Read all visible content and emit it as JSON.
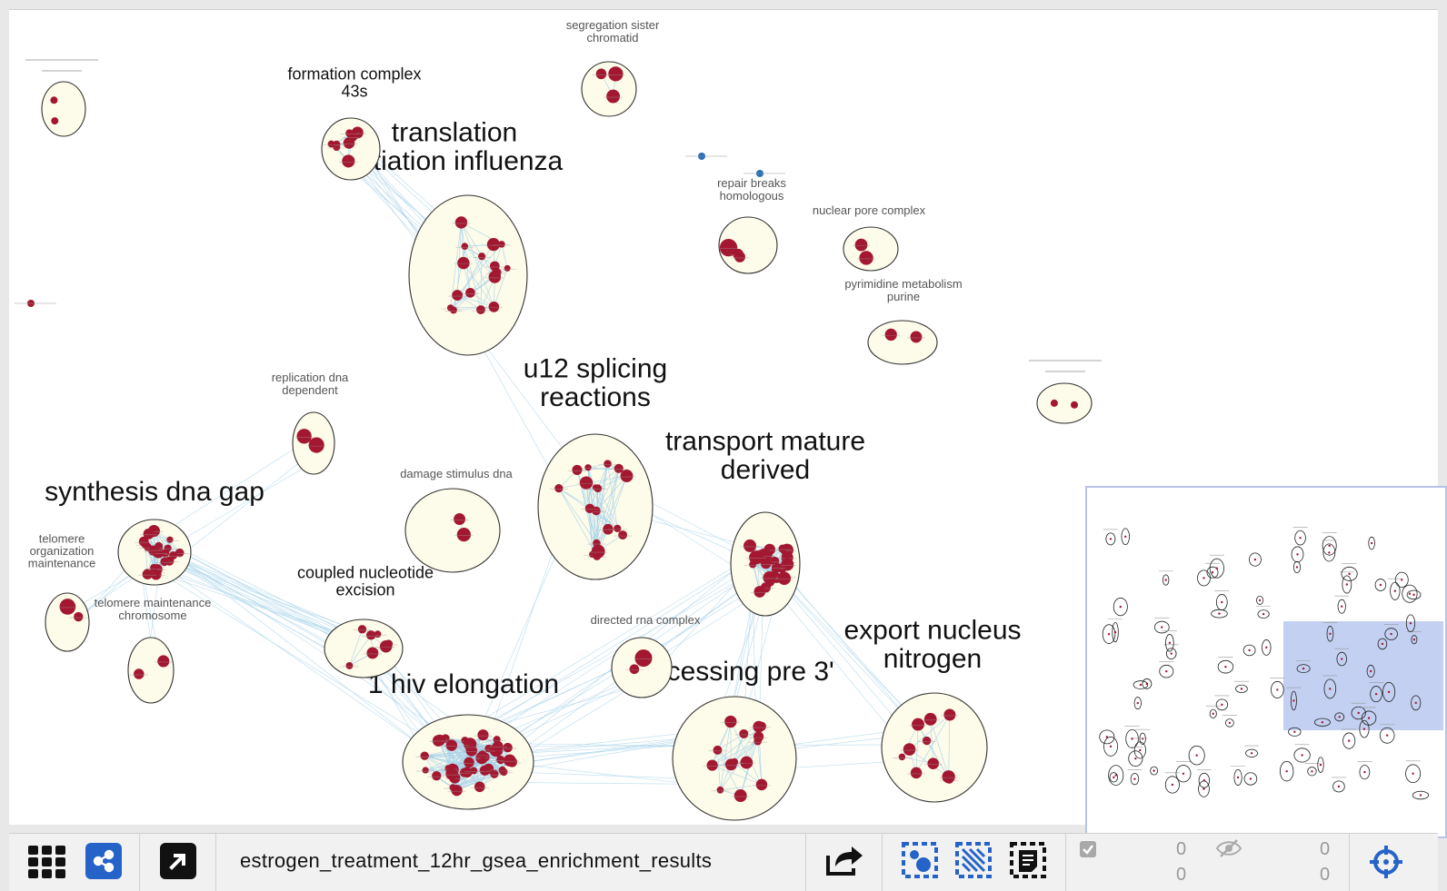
{
  "network": {
    "title": "estrogen_treatment_12hr_gsea_enrichment_results",
    "clusters": [
      {
        "label": "synthesis dna gap",
        "size": "big"
      },
      {
        "label": "translation initiation influenza",
        "size": "big"
      },
      {
        "label": "u12 splicing reactions",
        "size": "big"
      },
      {
        "label": "transport mature derived",
        "size": "big"
      },
      {
        "label": "1 hiv elongation",
        "size": "big"
      },
      {
        "label": "processing pre 3'",
        "size": "big"
      },
      {
        "label": "export nucleus nitrogen",
        "size": "big"
      },
      {
        "label": "coupled nucleotide excision",
        "size": "medium"
      },
      {
        "label": "formation complex 43s",
        "size": "medium"
      },
      {
        "label": "segregation sister chromatid",
        "size": "small"
      },
      {
        "label": "repair breaks homologous",
        "size": "small"
      },
      {
        "label": "nuclear pore complex",
        "size": "small"
      },
      {
        "label": "pyrimidine metabolism purine",
        "size": "small"
      },
      {
        "label": "replication dna dependent",
        "size": "small"
      },
      {
        "label": "damage stimulus dna",
        "size": "small"
      },
      {
        "label": "directed rna complex",
        "size": "small"
      },
      {
        "label": "telomere organization maintenance",
        "size": "small"
      },
      {
        "label": "telomere maintenance chromosome",
        "size": "small"
      }
    ],
    "colors": {
      "node": "#a31830",
      "node_blue": "#2a6fb5",
      "cluster_fill": "#fdfbe9",
      "edge": "#a9d3ea",
      "navigator_viewport": "#b9c8ee"
    }
  },
  "toolbar": {
    "grid_icon": "grid-icon",
    "share_icon": "share-icon",
    "expand_icon": "expand-arrow-icon",
    "export_icon": "export-icon",
    "select_nodes_icon": "select-nodes-icon",
    "select_edges_icon": "select-edges-icon",
    "select_annotations_icon": "select-annotations-icon",
    "selected_count_top": "0",
    "selected_count_bottom": "0",
    "hidden_count_top": "0",
    "hidden_count_bottom": "0",
    "fit_icon": "fit-crosshair-icon"
  }
}
